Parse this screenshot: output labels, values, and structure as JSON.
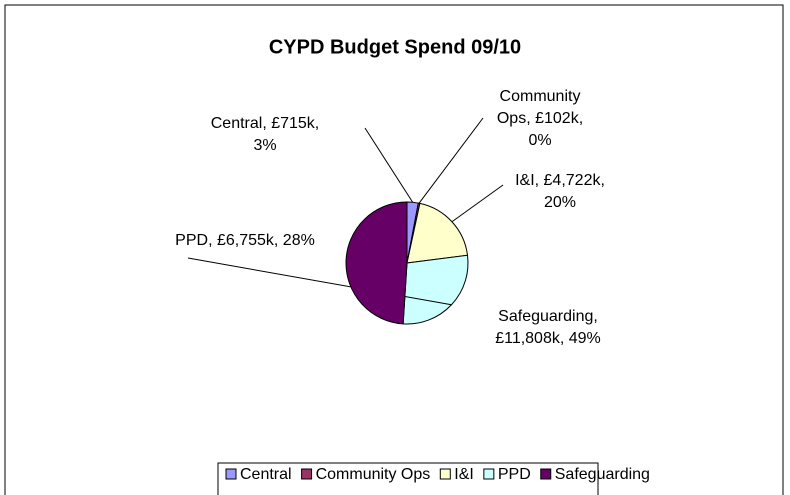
{
  "chart_data": {
    "type": "pie",
    "title": "CYPD Budget Spend 09/10",
    "categories": [
      "Central",
      "Community Ops",
      "I&I",
      "PPD",
      "Safeguarding"
    ],
    "values": [
      715,
      102,
      4722,
      6755,
      11808
    ],
    "value_labels": [
      "£715k",
      "£102k",
      "£4,722k",
      "£6,755k",
      "£11,808k"
    ],
    "percentages": [
      3,
      0,
      20,
      28,
      49
    ],
    "percent_labels": [
      "3%",
      "0%",
      "20%",
      "28%",
      "49%"
    ],
    "colors": [
      "#9999ff",
      "#993366",
      "#ffffcc",
      "#ccffff",
      "#660066"
    ],
    "legend": "bottom"
  }
}
